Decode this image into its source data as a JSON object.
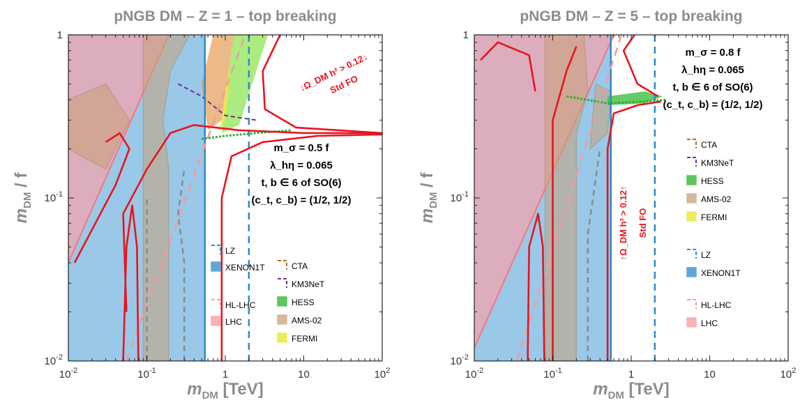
{
  "chart_data": [
    {
      "type": "scatter",
      "title": "pNGB DM  –  Z = 1  –  top breaking",
      "xlabel": "m_DM   [TeV]",
      "ylabel": "m_DM / f",
      "xscale": "log",
      "yscale": "log",
      "xlim": [
        0.01,
        100
      ],
      "ylim": [
        0.01,
        1
      ],
      "xticks": [
        {
          "value": 0.01,
          "label": "10^-2"
        },
        {
          "value": 0.1,
          "label": "10^-1"
        },
        {
          "value": 1,
          "label": "1"
        },
        {
          "value": 10,
          "label": "10"
        },
        {
          "value": 100,
          "label": "10^2"
        }
      ],
      "yticks": [
        {
          "value": 0.01,
          "label": "10^-2"
        },
        {
          "value": 0.1,
          "label": "10^-1"
        },
        {
          "value": 1,
          "label": "1"
        }
      ],
      "annotations": {
        "params": [
          "m_σ = 0.5 f",
          "λ_hη = 0.065",
          "t, b ∈ 6 of SO(6)",
          "(c_t, c_b) = (1/2, 1/2)"
        ],
        "relic": [
          "↓Ω_DM h² > 0.12↓",
          "Std FO"
        ]
      },
      "legend": [
        {
          "label": "LZ",
          "style": "dashed",
          "color": "#2a8bc9"
        },
        {
          "label": "XENON1T",
          "style": "filled",
          "color": "#2a8bc9"
        },
        {
          "label": "HL-LHC",
          "style": "dashed",
          "color": "#f59a9a"
        },
        {
          "label": "LHC",
          "style": "filled",
          "color": "#f59a9a"
        },
        {
          "label": "CTA",
          "style": "dashed",
          "color": "#b06a2a"
        },
        {
          "label": "KM3NeT",
          "style": "dashed",
          "color": "#7a2a8a"
        },
        {
          "label": "HESS",
          "style": "filled",
          "color": "#2ab22a"
        },
        {
          "label": "AMS-02",
          "style": "filled",
          "color": "#c9a27a"
        },
        {
          "label": "FERMI",
          "style": "filled",
          "color": "#e6e62a"
        }
      ],
      "series": [
        {
          "name": "XENON1T",
          "x": [
            0.01,
            0.55,
            0.55,
            0.01
          ],
          "y": [
            0.01,
            0.01,
            1,
            1
          ]
        },
        {
          "name": "LZ",
          "x": [
            2,
            2
          ],
          "y": [
            0.01,
            1
          ]
        },
        {
          "name": "LHC",
          "x": [
            0.01,
            0.01,
            0.16,
            0.01
          ],
          "y": [
            0.01,
            1,
            1,
            0.04
          ]
        },
        {
          "name": "HL-LHC",
          "x": [
            0.055,
            1.8
          ],
          "y": [
            0.01,
            1
          ]
        }
      ]
    },
    {
      "type": "scatter",
      "title": "pNGB DM  –  Z = 5  –  top breaking",
      "xlabel": "m_DM   [TeV]",
      "ylabel": "m_DM / f",
      "xscale": "log",
      "yscale": "log",
      "xlim": [
        0.01,
        100
      ],
      "ylim": [
        0.01,
        1
      ],
      "xticks": [
        {
          "value": 0.01,
          "label": "10^-2"
        },
        {
          "value": 0.1,
          "label": "10^-1"
        },
        {
          "value": 1,
          "label": "1"
        },
        {
          "value": 10,
          "label": "10"
        },
        {
          "value": 100,
          "label": "10^2"
        }
      ],
      "yticks": [
        {
          "value": 0.01,
          "label": "10^-2"
        },
        {
          "value": 0.1,
          "label": "10^-1"
        },
        {
          "value": 1,
          "label": "1"
        }
      ],
      "annotations": {
        "params": [
          "m_σ = 0.8 f",
          "λ_hη = 0.065",
          "t, b ∈ 6 of SO(6)",
          "(c_t, c_b) = (1/2, 1/2)"
        ],
        "relic": [
          "↑Ω_DM h² > 0.12↑",
          "Std FO"
        ]
      },
      "legend": [
        {
          "label": "CTA",
          "style": "dashed",
          "color": "#b06a2a"
        },
        {
          "label": "KM3NeT",
          "style": "dashed",
          "color": "#7a2a8a"
        },
        {
          "label": "HESS",
          "style": "filled",
          "color": "#2ab22a"
        },
        {
          "label": "AMS-02",
          "style": "filled",
          "color": "#c9a27a"
        },
        {
          "label": "FERMI",
          "style": "filled",
          "color": "#e6e62a"
        },
        {
          "label": "LZ",
          "style": "dashed",
          "color": "#2a8bc9"
        },
        {
          "label": "XENON1T",
          "style": "filled",
          "color": "#2a8bc9"
        },
        {
          "label": "HL-LHC",
          "style": "dashed",
          "color": "#f59a9a"
        },
        {
          "label": "LHC",
          "style": "filled",
          "color": "#f59a9a"
        }
      ],
      "series": [
        {
          "name": "XENON1T",
          "x": [
            0.01,
            0.55,
            0.55,
            0.01
          ],
          "y": [
            0.01,
            0.01,
            1,
            1
          ]
        },
        {
          "name": "LZ",
          "x": [
            2,
            2
          ],
          "y": [
            0.01,
            1
          ]
        },
        {
          "name": "LHC",
          "x": [
            0.01,
            0.01,
            0.16,
            0.01
          ],
          "y": [
            0.01,
            1,
            1,
            0.04
          ]
        },
        {
          "name": "HL-LHC",
          "x": [
            0.035,
            0.75
          ],
          "y": [
            0.01,
            1
          ]
        }
      ]
    }
  ]
}
